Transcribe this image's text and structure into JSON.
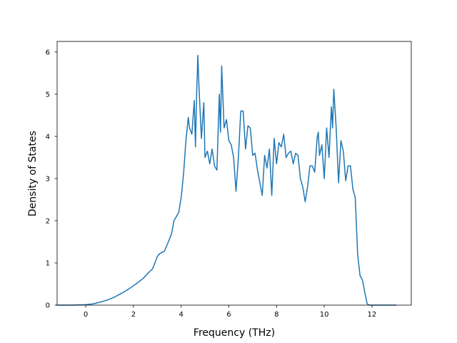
{
  "chart_data": {
    "type": "line",
    "title": "",
    "xlabel": "Frequency (THz)",
    "ylabel": "Density of States",
    "xlim": [
      -1.2,
      13.65
    ],
    "ylim": [
      0,
      6.25
    ],
    "xticks": [
      0,
      2,
      4,
      6,
      8,
      10,
      12
    ],
    "yticks": [
      0,
      1,
      2,
      3,
      4,
      5,
      6
    ],
    "grid": false,
    "legend": "none",
    "series": [
      {
        "color": "#1f77b4",
        "x": [
          -1.2,
          -0.6,
          0,
          0.3,
          0.6,
          0.9,
          1.2,
          1.5,
          1.8,
          2.1,
          2.4,
          2.6,
          2.8,
          2.9,
          3.0,
          3.1,
          3.3,
          3.5,
          3.6,
          3.7,
          3.8,
          3.9,
          4.0,
          4.1,
          4.2,
          4.3,
          4.35,
          4.45,
          4.55,
          4.6,
          4.65,
          4.7,
          4.75,
          4.85,
          4.95,
          5.0,
          5.1,
          5.2,
          5.3,
          5.4,
          5.5,
          5.6,
          5.65,
          5.7,
          5.8,
          5.9,
          6.0,
          6.1,
          6.2,
          6.3,
          6.4,
          6.5,
          6.6,
          6.7,
          6.8,
          6.9,
          7.0,
          7.1,
          7.2,
          7.3,
          7.4,
          7.5,
          7.6,
          7.7,
          7.8,
          7.9,
          8.0,
          8.1,
          8.2,
          8.3,
          8.4,
          8.5,
          8.6,
          8.7,
          8.8,
          8.9,
          9.0,
          9.1,
          9.2,
          9.3,
          9.4,
          9.5,
          9.6,
          9.7,
          9.75,
          9.8,
          9.9,
          10.0,
          10.1,
          10.2,
          10.3,
          10.35,
          10.4,
          10.5,
          10.6,
          10.7,
          10.8,
          10.9,
          11.0,
          11.1,
          11.2,
          11.3,
          11.4,
          11.5,
          11.6,
          11.7,
          11.8,
          11.9,
          12.1,
          13.0
        ],
        "values": [
          0,
          0,
          0.01,
          0.03,
          0.07,
          0.12,
          0.19,
          0.28,
          0.38,
          0.5,
          0.63,
          0.75,
          0.86,
          1.0,
          1.15,
          1.22,
          1.28,
          1.55,
          1.7,
          2.0,
          2.1,
          2.2,
          2.55,
          3.1,
          3.9,
          4.45,
          4.2,
          4.05,
          4.85,
          3.75,
          5.0,
          5.92,
          5.15,
          3.95,
          4.8,
          3.5,
          3.65,
          3.35,
          3.7,
          3.3,
          3.2,
          5.0,
          4.1,
          5.67,
          4.2,
          4.4,
          3.9,
          3.8,
          3.5,
          2.7,
          3.5,
          4.6,
          4.6,
          3.7,
          4.25,
          4.2,
          3.55,
          3.6,
          3.2,
          2.9,
          2.6,
          3.55,
          3.25,
          3.7,
          2.6,
          3.95,
          3.35,
          3.85,
          3.75,
          4.05,
          3.5,
          3.6,
          3.65,
          3.35,
          3.6,
          3.55,
          3.0,
          2.8,
          2.45,
          2.8,
          3.3,
          3.3,
          3.15,
          3.95,
          4.1,
          3.55,
          3.8,
          3.0,
          4.2,
          3.5,
          4.7,
          4.2,
          5.12,
          4.2,
          2.9,
          3.9,
          3.65,
          2.95,
          3.3,
          3.3,
          2.75,
          2.55,
          1.2,
          0.7,
          0.6,
          0.3,
          0.03,
          0,
          0,
          0
        ]
      }
    ]
  }
}
